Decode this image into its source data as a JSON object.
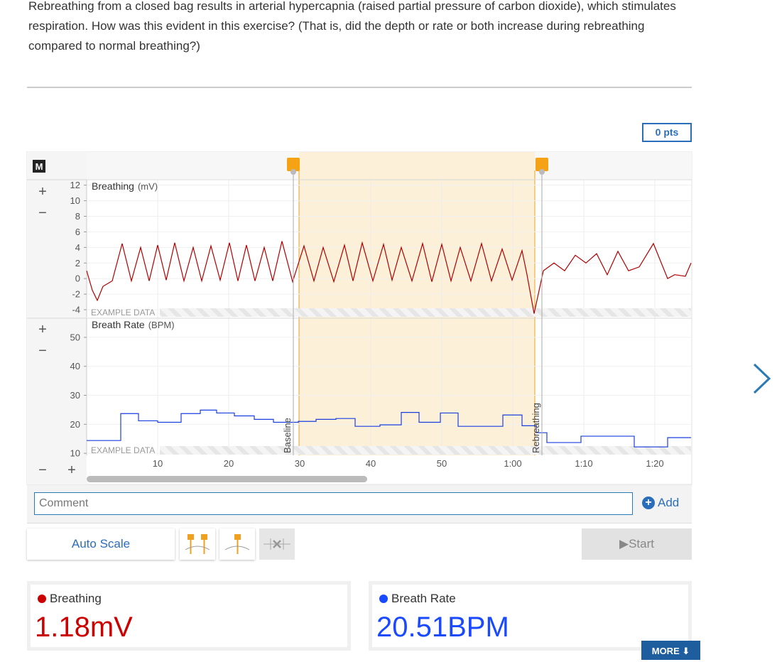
{
  "question": "Rebreathing from a closed bag results in arterial hypercapnia (raised partial pressure of carbon dioxide), which stimulates respiration. How was this evident in this exercise? (That is, did the depth or rate or both increase during rebreathing compared to normal breathing?)",
  "score": "0 pts",
  "graph": {
    "mode_badge": "M",
    "xlim": [
      0,
      85.1
    ],
    "xticks": [
      10,
      20,
      30,
      40,
      50,
      {
        "value": 60,
        "label": "1:00"
      },
      {
        "value": 70,
        "label": "1:10"
      },
      {
        "value": 80,
        "label": "1:20"
      }
    ],
    "selection": [
      29.9,
      63.1
    ],
    "markers": [
      {
        "label": "Baseline",
        "x": 29.1
      },
      {
        "label": "Rebreathing",
        "x": 64.1
      }
    ],
    "plots": [
      {
        "title": "Breathing",
        "unit": "(mV)",
        "watermark": "EXAMPLE DATA",
        "color": "#b00000",
        "style": "line",
        "ylim": [
          -5,
          12.7
        ],
        "yticks": [
          12,
          10,
          8,
          6,
          4,
          2,
          0,
          -2,
          -4
        ],
        "x": [
          0,
          0.8,
          1.5,
          2.3,
          3.6,
          5.0,
          6.3,
          7.6,
          8.8,
          10.0,
          11.2,
          12.4,
          13.7,
          15.0,
          16.2,
          17.5,
          18.8,
          20.1,
          21.3,
          22.5,
          23.7,
          25.0,
          26.2,
          27.5,
          29.0,
          30.6,
          32.0,
          33.3,
          34.8,
          36.3,
          37.5,
          38.8,
          40.3,
          41.8,
          43.0,
          44.3,
          45.8,
          47.3,
          48.6,
          50.0,
          51.3,
          52.6,
          54.1,
          55.6,
          57.0,
          58.5,
          59.9,
          61.3,
          62.0,
          63.0,
          64.3,
          65.8,
          67.3,
          68.8,
          70.3,
          71.8,
          73.3,
          74.8,
          76.3,
          77.8,
          79.8,
          81.8,
          82.8,
          84.3,
          85.1
        ],
        "values": [
          1,
          -1.5,
          -2.8,
          -1,
          -0.3,
          4.5,
          -0.3,
          4.0,
          -0.3,
          4.3,
          -0.2,
          4.6,
          -0.3,
          4.0,
          -0.3,
          4.2,
          -0.2,
          4.6,
          -0.3,
          4.3,
          -0.3,
          4.0,
          -0.3,
          4.8,
          -0.4,
          4.2,
          -0.3,
          4.0,
          -0.4,
          4.3,
          -0.3,
          4.6,
          -0.3,
          4.4,
          -0.2,
          4.0,
          -0.3,
          4.5,
          -0.4,
          4.4,
          -0.3,
          4.0,
          -0.3,
          4.5,
          -0.3,
          3.8,
          -0.2,
          3.6,
          0.5,
          -4.5,
          1.0,
          2.0,
          1.0,
          3.0,
          2.0,
          3.2,
          0.5,
          3.5,
          1.0,
          1.5,
          4.5,
          0.0,
          0.5,
          0.3,
          2.0
        ]
      },
      {
        "title": "Breath Rate",
        "unit": "(BPM)",
        "watermark": "EXAMPLE DATA",
        "color": "#1a3fe0",
        "style": "step",
        "ylim": [
          9.3,
          56.6
        ],
        "yticks": [
          50,
          40,
          30,
          20,
          10
        ],
        "x": [
          0,
          4.8,
          7.3,
          10.0,
          13.3,
          16.0,
          18.3,
          20.8,
          23.6,
          26.3,
          29.8,
          32.3,
          35.1,
          37.8,
          41.3,
          44.3,
          46.8,
          49.8,
          52.3,
          58.6,
          61.3,
          63.3,
          64.8,
          69.6,
          77.1,
          81.8
        ],
        "values": [
          14.4,
          23.7,
          21.2,
          20.7,
          23.7,
          24.9,
          23.9,
          22.9,
          21.7,
          20.7,
          21.0,
          21.7,
          22.0,
          19.3,
          19.8,
          24.1,
          20.7,
          23.9,
          19.3,
          23.2,
          19.5,
          17.1,
          13.7,
          15.9,
          12.2,
          15.4
        ]
      }
    ]
  },
  "comment_placeholder": "Comment",
  "add_label": "Add",
  "auto_scale": "Auto Scale",
  "start": "Start",
  "meters": [
    {
      "name": "Breathing",
      "value": "1.18",
      "unit": "mV",
      "color": "#cc0000"
    },
    {
      "name": "Breath Rate",
      "value": "20.51",
      "unit": "BPM",
      "color": "#1a4aff"
    }
  ],
  "more": "MORE"
}
